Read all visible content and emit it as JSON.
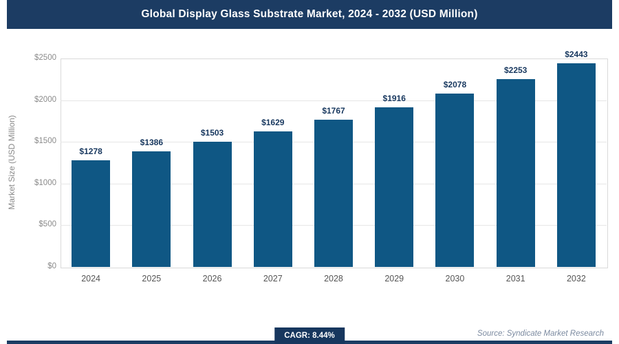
{
  "header": {
    "title": "Global Display Glass Substrate Market, 2024 - 2032 (USD Million)"
  },
  "chart_data": {
    "type": "bar",
    "title": "Global Display Glass Substrate Market, 2024 - 2032 (USD Million)",
    "categories": [
      "2024",
      "2025",
      "2026",
      "2027",
      "2028",
      "2029",
      "2030",
      "2031",
      "2032"
    ],
    "values": [
      1278,
      1386,
      1503,
      1629,
      1767,
      1916,
      2078,
      2253,
      2443
    ],
    "value_labels": [
      "$1278",
      "$1386",
      "$1503",
      "$1629",
      "$1767",
      "$1916",
      "$2078",
      "$2253",
      "$2443"
    ],
    "xlabel": "",
    "ylabel": "Market Size (USD Million)",
    "ylim": [
      0,
      2500
    ],
    "yticks": [
      0,
      500,
      1000,
      1500,
      2000,
      2500
    ],
    "ytick_labels": [
      "$0",
      "$500",
      "$1000",
      "$1500",
      "$2000",
      "$2500"
    ],
    "grid": true,
    "legend": "none"
  },
  "footer": {
    "cagr_label": "CAGR: 8.44%",
    "source": "Source: Syndicate Market Research"
  },
  "colors": {
    "header_bg": "#1c3c63",
    "bar": "#0f5784",
    "accent": "#17375e",
    "grid": "#e6e6e6",
    "plot_border": "#d9d9d9"
  }
}
